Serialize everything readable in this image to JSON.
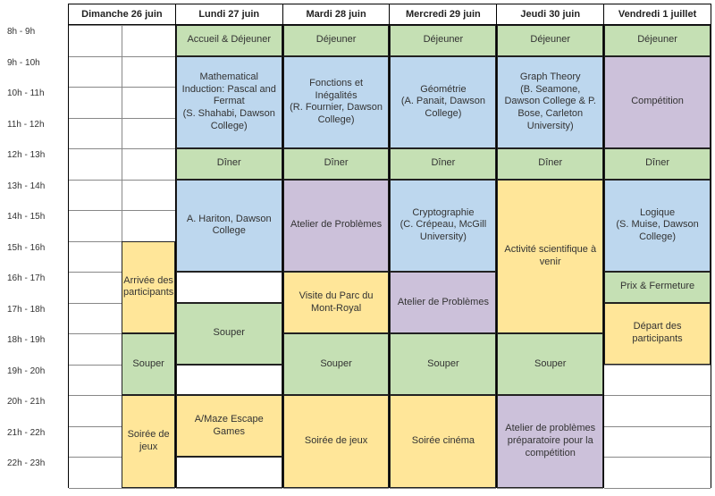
{
  "colors": {
    "green": "#c5e0b4",
    "blue": "#bdd7ee",
    "yellow": "#ffe699",
    "purple": "#ccc1da",
    "white": "#ffffff"
  },
  "time_labels": [
    "8h - 9h",
    "9h - 10h",
    "10h - 11h",
    "11h - 12h",
    "12h - 13h",
    "13h - 14h",
    "14h - 15h",
    "15h - 16h",
    "16h - 17h",
    "17h - 18h",
    "18h - 19h",
    "19h - 20h",
    "20h - 21h",
    "21h - 22h",
    "22h - 23h"
  ],
  "row_height": 34.5,
  "days": [
    {
      "name": "Dimanche 26 juin",
      "split": true,
      "blocks": [
        {
          "label": "Arrivée des participants",
          "start": 7,
          "span": 3,
          "color": "yellow",
          "half": true
        },
        {
          "label": "Souper",
          "start": 10,
          "span": 2,
          "color": "green",
          "half": true
        },
        {
          "label": "Soirée de jeux",
          "start": 12,
          "span": 3,
          "color": "yellow",
          "half": true
        }
      ]
    },
    {
      "name": "Lundi 27 juin",
      "blocks": [
        {
          "label": "Accueil & Déjeuner",
          "start": 0,
          "span": 1,
          "color": "green"
        },
        {
          "label": "Mathematical Induction: Pascal and Fermat\n(S. Shahabi, Dawson College)",
          "start": 1,
          "span": 3,
          "color": "blue"
        },
        {
          "label": "Dîner",
          "start": 4,
          "span": 1,
          "color": "green"
        },
        {
          "label": "A. Hariton, Dawson College",
          "start": 5,
          "span": 3,
          "color": "blue"
        },
        {
          "label": "",
          "start": 8,
          "span": 1,
          "color": "white"
        },
        {
          "label": "Souper",
          "start": 9,
          "span": 2,
          "color": "green"
        },
        {
          "label": "",
          "start": 11,
          "span": 1,
          "color": "white"
        },
        {
          "label": "A/Maze Escape Games",
          "start": 12,
          "span": 2,
          "color": "yellow"
        },
        {
          "label": "",
          "start": 14,
          "span": 1,
          "color": "white"
        }
      ]
    },
    {
      "name": "Mardi 28 juin",
      "blocks": [
        {
          "label": "Déjeuner",
          "start": 0,
          "span": 1,
          "color": "green"
        },
        {
          "label": "Fonctions et Inégalités\n(R. Fournier, Dawson College)",
          "start": 1,
          "span": 3,
          "color": "blue"
        },
        {
          "label": "Dîner",
          "start": 4,
          "span": 1,
          "color": "green"
        },
        {
          "label": "Atelier de Problèmes",
          "start": 5,
          "span": 3,
          "color": "purple"
        },
        {
          "label": "Visite du Parc du Mont-Royal",
          "start": 8,
          "span": 2,
          "color": "yellow"
        },
        {
          "label": "Souper",
          "start": 10,
          "span": 2,
          "color": "green"
        },
        {
          "label": "Soirée de jeux",
          "start": 12,
          "span": 3,
          "color": "yellow"
        }
      ]
    },
    {
      "name": "Mercredi 29 juin",
      "blocks": [
        {
          "label": "Déjeuner",
          "start": 0,
          "span": 1,
          "color": "green"
        },
        {
          "label": "Géométrie\n(A. Panait, Dawson College)",
          "start": 1,
          "span": 3,
          "color": "blue"
        },
        {
          "label": "Dîner",
          "start": 4,
          "span": 1,
          "color": "green"
        },
        {
          "label": "Cryptographie\n(C. Crépeau, McGill University)",
          "start": 5,
          "span": 3,
          "color": "blue"
        },
        {
          "label": "Atelier de Problèmes",
          "start": 8,
          "span": 2,
          "color": "purple"
        },
        {
          "label": "Souper",
          "start": 10,
          "span": 2,
          "color": "green"
        },
        {
          "label": "Soirée cinéma",
          "start": 12,
          "span": 3,
          "color": "yellow"
        }
      ]
    },
    {
      "name": "Jeudi 30 juin",
      "blocks": [
        {
          "label": "Déjeuner",
          "start": 0,
          "span": 1,
          "color": "green"
        },
        {
          "label": "Graph Theory\n(B. Seamone, Dawson College & P. Bose, Carleton University)",
          "start": 1,
          "span": 3,
          "color": "blue"
        },
        {
          "label": "Dîner",
          "start": 4,
          "span": 1,
          "color": "green"
        },
        {
          "label": "Activité scientifique à venir",
          "start": 5,
          "span": 5,
          "color": "yellow"
        },
        {
          "label": "Souper",
          "start": 10,
          "span": 2,
          "color": "green"
        },
        {
          "label": "Atelier de problèmes préparatoire pour la compétition",
          "start": 12,
          "span": 3,
          "color": "purple"
        }
      ]
    },
    {
      "name": "Vendredi 1 juillet",
      "blocks": [
        {
          "label": "Déjeuner",
          "start": 0,
          "span": 1,
          "color": "green"
        },
        {
          "label": "Compétition",
          "start": 1,
          "span": 3,
          "color": "purple"
        },
        {
          "label": "Dîner",
          "start": 4,
          "span": 1,
          "color": "green"
        },
        {
          "label": "Logique\n(S. Muise, Dawson College)",
          "start": 5,
          "span": 3,
          "color": "blue"
        },
        {
          "label": "Prix & Fermeture",
          "start": 8,
          "span": 1,
          "color": "green"
        },
        {
          "label": "Départ des participants",
          "start": 9,
          "span": 2,
          "color": "yellow"
        }
      ]
    }
  ]
}
